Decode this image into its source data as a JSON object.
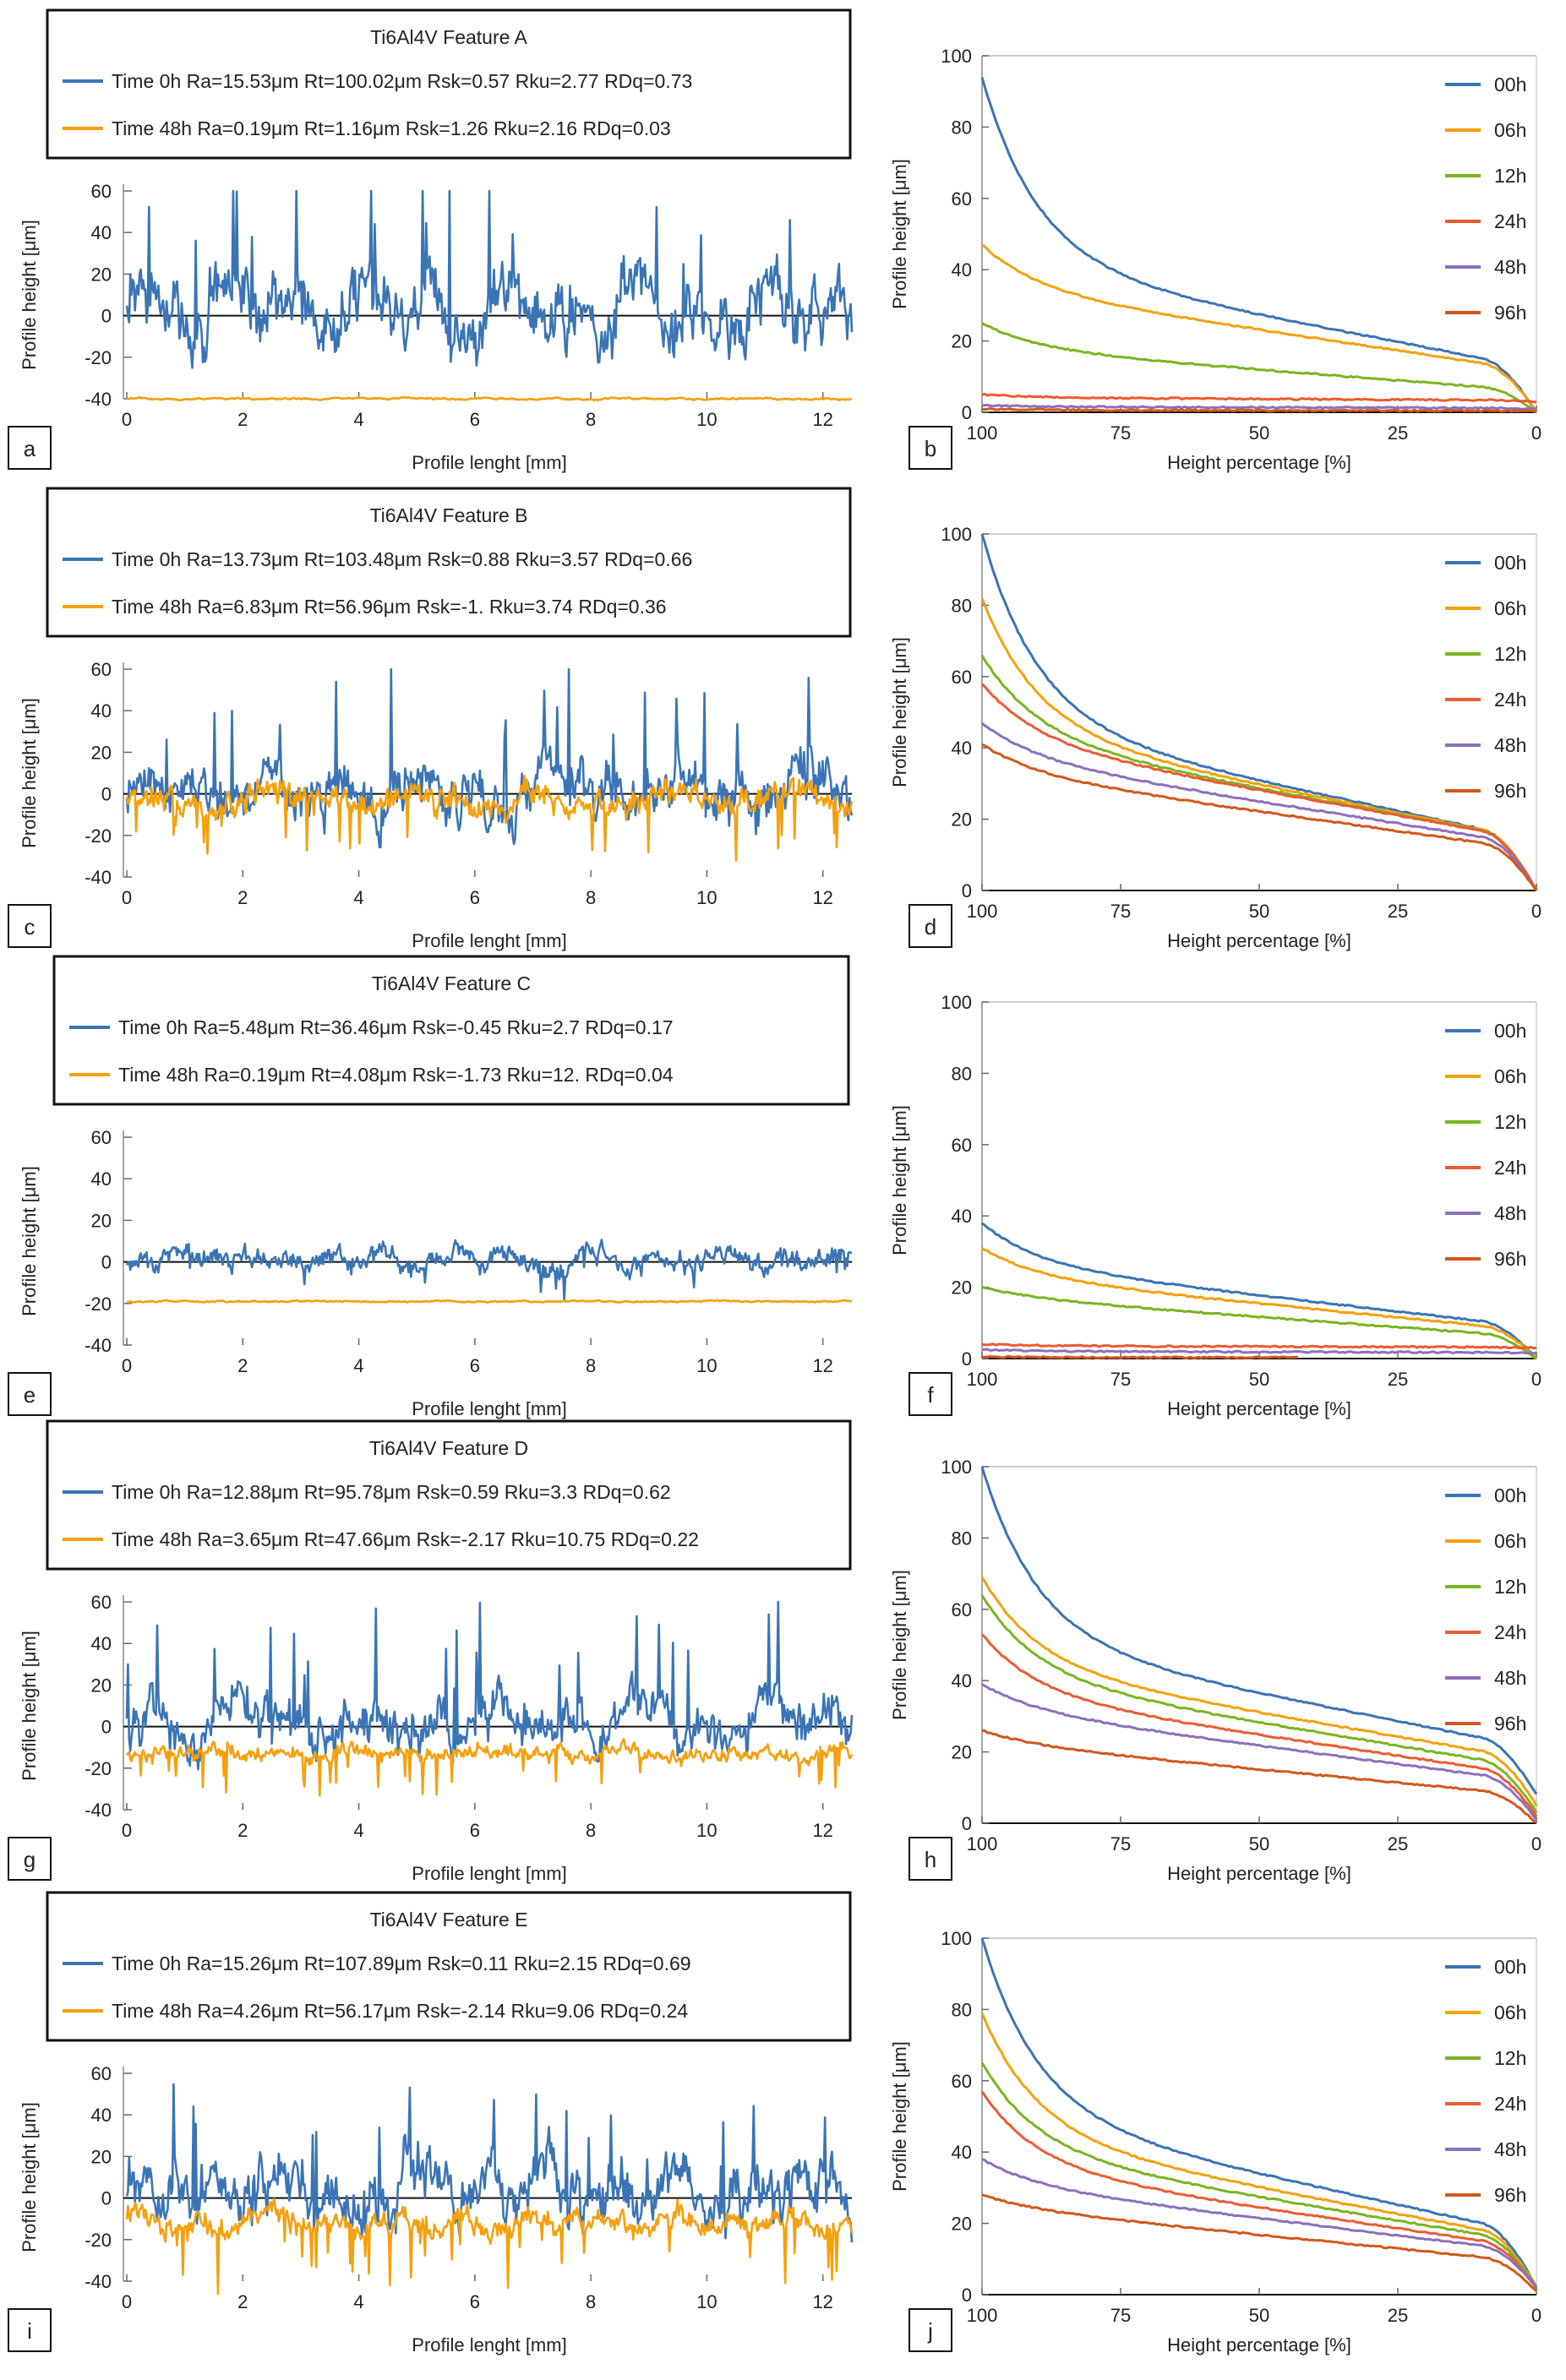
{
  "colors": {
    "blue": "#3a74b5",
    "orange": "#f5a00d",
    "green": "#7ab51f",
    "red": "#ec5b32",
    "purple": "#8d6fbd",
    "darkorange": "#d2581a"
  },
  "chart_data": [
    {
      "type": "line",
      "panel": "a",
      "title": "Ti6Al4V   Feature A",
      "xlabel": "Profile lenght [mm]",
      "ylabel": "Profile height [μm]",
      "xlim": [
        0,
        12.5
      ],
      "ylim": [
        -40,
        60
      ],
      "xticks": [
        0,
        2,
        4,
        6,
        8,
        10,
        12
      ],
      "yticks": [
        -40,
        -20,
        0,
        20,
        40,
        60
      ],
      "series": [
        {
          "name": "Time  0h",
          "color": "#3a74b5",
          "legend": "Time  0h   Ra=15.53μm   Rt=100.02μm   Rsk=0.57   Rku=2.77   RDq=0.73",
          "amp": 22,
          "offset": 3,
          "spikes": 2.2
        },
        {
          "name": "Time 48h",
          "color": "#f5a00d",
          "legend": "Time 48h   Ra=0.19μm   Rt=1.16μm   Rsk=1.26   Rku=2.16   RDq=0.03",
          "amp": 0.6,
          "offset": -40,
          "spikes": 0
        }
      ]
    },
    {
      "type": "line",
      "panel": "b",
      "xlabel": "Height percentage [%]",
      "ylabel": "Profile height [μm]",
      "xlim": [
        100,
        0
      ],
      "ylim": [
        0,
        100
      ],
      "xticks": [
        100,
        75,
        50,
        25,
        0
      ],
      "yticks": [
        0,
        20,
        40,
        60,
        80,
        100
      ],
      "series": [
        {
          "name": "00h",
          "color": "#3a74b5",
          "start": 94,
          "mid": 35,
          "end": 0
        },
        {
          "name": "06h",
          "color": "#f5a00d",
          "start": 47,
          "mid": 33,
          "end": 0
        },
        {
          "name": "12h",
          "color": "#7ab51f",
          "start": 25,
          "mid": 17,
          "end": 0
        },
        {
          "name": "24h",
          "color": "#ec5b32",
          "start": 5,
          "mid": 4,
          "end": 3
        },
        {
          "name": "48h",
          "color": "#8d6fbd",
          "start": 2,
          "mid": 1.5,
          "end": 1
        },
        {
          "name": "96h",
          "color": "#d2581a",
          "start": 1,
          "mid": 0.6,
          "end": 0.3
        }
      ]
    },
    {
      "type": "line",
      "panel": "c",
      "title": "Ti6Al4V   Feature B",
      "xlabel": "Profile lenght [mm]",
      "ylabel": "Profile height [μm]",
      "xlim": [
        0,
        12.5
      ],
      "ylim": [
        -40,
        60
      ],
      "xticks": [
        0,
        2,
        4,
        6,
        8,
        10,
        12
      ],
      "yticks": [
        -40,
        -20,
        0,
        20,
        40,
        60
      ],
      "series": [
        {
          "name": "Time  0h",
          "color": "#3a74b5",
          "legend": "Time  0h   Ra=13.73μm   Rt=103.48μm   Rsk=0.88   Rku=3.57   RDq=0.66",
          "amp": 18,
          "offset": 0,
          "spikes": 2.6
        },
        {
          "name": "Time 48h",
          "color": "#f5a00d",
          "legend": "Time 48h   Ra=6.83μm   Rt=56.96μm   Rsk=-1.   Rku=3.74   RDq=0.36",
          "amp": 9,
          "offset": -3,
          "spikes": -2
        }
      ]
    },
    {
      "type": "line",
      "panel": "d",
      "xlabel": "Height percentage [%]",
      "ylabel": "Profile height [μm]",
      "xlim": [
        100,
        0
      ],
      "ylim": [
        0,
        100
      ],
      "xticks": [
        100,
        75,
        50,
        25,
        0
      ],
      "yticks": [
        0,
        20,
        40,
        60,
        80,
        100
      ],
      "series": [
        {
          "name": "00h",
          "color": "#3a74b5",
          "start": 100,
          "mid": 40,
          "end": 0
        },
        {
          "name": "06h",
          "color": "#f5a00d",
          "start": 82,
          "mid": 40,
          "end": 0
        },
        {
          "name": "12h",
          "color": "#7ab51f",
          "start": 66,
          "mid": 40,
          "end": 0
        },
        {
          "name": "24h",
          "color": "#ec5b32",
          "start": 58,
          "mid": 40,
          "end": 0
        },
        {
          "name": "48h",
          "color": "#8d6fbd",
          "start": 47,
          "mid": 36,
          "end": 0
        },
        {
          "name": "96h",
          "color": "#d2581a",
          "start": 41,
          "mid": 32,
          "end": 0
        }
      ]
    },
    {
      "type": "line",
      "panel": "e",
      "title": "Ti6Al4V   Feature C",
      "xlabel": "Profile lenght [mm]",
      "ylabel": "Profile height [μm]",
      "xlim": [
        0,
        12.5
      ],
      "ylim": [
        -40,
        60
      ],
      "xticks": [
        0,
        2,
        4,
        6,
        8,
        10,
        12
      ],
      "yticks": [
        -40,
        -20,
        0,
        20,
        40,
        60
      ],
      "series": [
        {
          "name": "Time  0h",
          "color": "#3a74b5",
          "legend": "Time  0h   Ra=5.48μm   Rt=36.46μm   Rsk=-0.45   Rku=2.7   RDq=0.17",
          "amp": 7,
          "offset": 1,
          "spikes": -1
        },
        {
          "name": "Time 48h",
          "color": "#f5a00d",
          "legend": "Time 48h   Ra=0.19μm   Rt=4.08μm   Rsk=-1.73   Rku=12.   RDq=0.04",
          "amp": 0.5,
          "offset": -19,
          "spikes": 0
        }
      ]
    },
    {
      "type": "line",
      "panel": "f",
      "xlabel": "Height percentage [%]",
      "ylabel": "Profile height [μm]",
      "xlim": [
        100,
        0
      ],
      "ylim": [
        0,
        100
      ],
      "xticks": [
        100,
        75,
        50,
        25,
        0
      ],
      "yticks": [
        0,
        20,
        40,
        60,
        80,
        100
      ],
      "series": [
        {
          "name": "00h",
          "color": "#3a74b5",
          "start": 38,
          "mid": 25,
          "end": 0
        },
        {
          "name": "06h",
          "color": "#f5a00d",
          "start": 31,
          "mid": 22,
          "end": 0
        },
        {
          "name": "12h",
          "color": "#7ab51f",
          "start": 20,
          "mid": 17,
          "end": 0
        },
        {
          "name": "24h",
          "color": "#ec5b32",
          "start": 4,
          "mid": 3.5,
          "end": 3
        },
        {
          "name": "48h",
          "color": "#8d6fbd",
          "start": 2.5,
          "mid": 2,
          "end": 1.5
        },
        {
          "name": "96h",
          "color": "#d2581a",
          "start": 0.5,
          "mid": 0.3,
          "end": 0.3,
          "cut": 43
        }
      ]
    },
    {
      "type": "line",
      "panel": "g",
      "title": "Ti6Al4V   Feature D",
      "xlabel": "Profile lenght [mm]",
      "ylabel": "Profile height [μm]",
      "xlim": [
        0,
        12.5
      ],
      "ylim": [
        -40,
        60
      ],
      "xticks": [
        0,
        2,
        4,
        6,
        8,
        10,
        12
      ],
      "yticks": [
        -40,
        -20,
        0,
        20,
        40,
        60
      ],
      "series": [
        {
          "name": "Time  0h",
          "color": "#3a74b5",
          "legend": "Time  0h   Ra=12.88μm   Rt=95.78μm   Rsk=0.59   Rku=3.3   RDq=0.62",
          "amp": 16,
          "offset": 2,
          "spikes": 2.4
        },
        {
          "name": "Time 48h",
          "color": "#f5a00d",
          "legend": "Time 48h   Ra=3.65μm   Rt=47.66μm   Rsk=-2.17   Rku=10.75   RDq=0.22",
          "amp": 5,
          "offset": -13,
          "spikes": -3
        }
      ]
    },
    {
      "type": "line",
      "panel": "h",
      "xlabel": "Height percentage [%]",
      "ylabel": "Profile height [μm]",
      "xlim": [
        100,
        0
      ],
      "ylim": [
        0,
        100
      ],
      "xticks": [
        100,
        75,
        50,
        25,
        0
      ],
      "yticks": [
        0,
        20,
        40,
        60,
        80,
        100
      ],
      "series": [
        {
          "name": "00h",
          "color": "#3a74b5",
          "start": 100,
          "mid": 45,
          "end": 8
        },
        {
          "name": "06h",
          "color": "#f5a00d",
          "start": 69,
          "mid": 41,
          "end": 5
        },
        {
          "name": "12h",
          "color": "#7ab51f",
          "start": 64,
          "mid": 38,
          "end": 3
        },
        {
          "name": "24h",
          "color": "#ec5b32",
          "start": 53,
          "mid": 34,
          "end": 2
        },
        {
          "name": "48h",
          "color": "#8d6fbd",
          "start": 39,
          "mid": 31,
          "end": 1
        },
        {
          "name": "96h",
          "color": "#d2581a",
          "start": 26,
          "mid": 22,
          "end": 0
        }
      ]
    },
    {
      "type": "line",
      "panel": "i",
      "title": "Ti6Al4V   Feature E",
      "xlabel": "Profile lenght [mm]",
      "ylabel": "Profile height [μm]",
      "xlim": [
        0,
        12.5
      ],
      "ylim": [
        -40,
        60
      ],
      "xticks": [
        0,
        2,
        4,
        6,
        8,
        10,
        12
      ],
      "yticks": [
        -40,
        -20,
        0,
        20,
        40,
        60
      ],
      "series": [
        {
          "name": "Time  0h",
          "color": "#3a74b5",
          "legend": "Time  0h   Ra=15.26μm   Rt=107.89μm   Rsk=0.11   Rku=2.15   RDq=0.69",
          "amp": 20,
          "offset": 3,
          "spikes": 1.8
        },
        {
          "name": "Time 48h",
          "color": "#f5a00d",
          "legend": "Time 48h   Ra=4.26μm   Rt=56.17μm   Rsk=-2.14   Rku=9.06   RDq=0.24",
          "amp": 8,
          "offset": -12,
          "spikes": -2.6
        }
      ]
    },
    {
      "type": "line",
      "panel": "j",
      "xlabel": "Height percentage [%]",
      "ylabel": "Profile height [μm]",
      "xlim": [
        100,
        0
      ],
      "ylim": [
        0,
        100
      ],
      "xticks": [
        100,
        75,
        50,
        25,
        0
      ],
      "yticks": [
        0,
        20,
        40,
        60,
        80,
        100
      ],
      "series": [
        {
          "name": "00h",
          "color": "#3a74b5",
          "start": 100,
          "mid": 44,
          "end": 2
        },
        {
          "name": "06h",
          "color": "#f5a00d",
          "start": 79,
          "mid": 40,
          "end": 2
        },
        {
          "name": "12h",
          "color": "#7ab51f",
          "start": 65,
          "mid": 37,
          "end": 2
        },
        {
          "name": "24h",
          "color": "#ec5b32",
          "start": 57,
          "mid": 33,
          "end": 2
        },
        {
          "name": "48h",
          "color": "#8d6fbd",
          "start": 38,
          "mid": 30,
          "end": 2
        },
        {
          "name": "96h",
          "color": "#d2581a",
          "start": 28,
          "mid": 24,
          "end": 1
        }
      ]
    }
  ]
}
